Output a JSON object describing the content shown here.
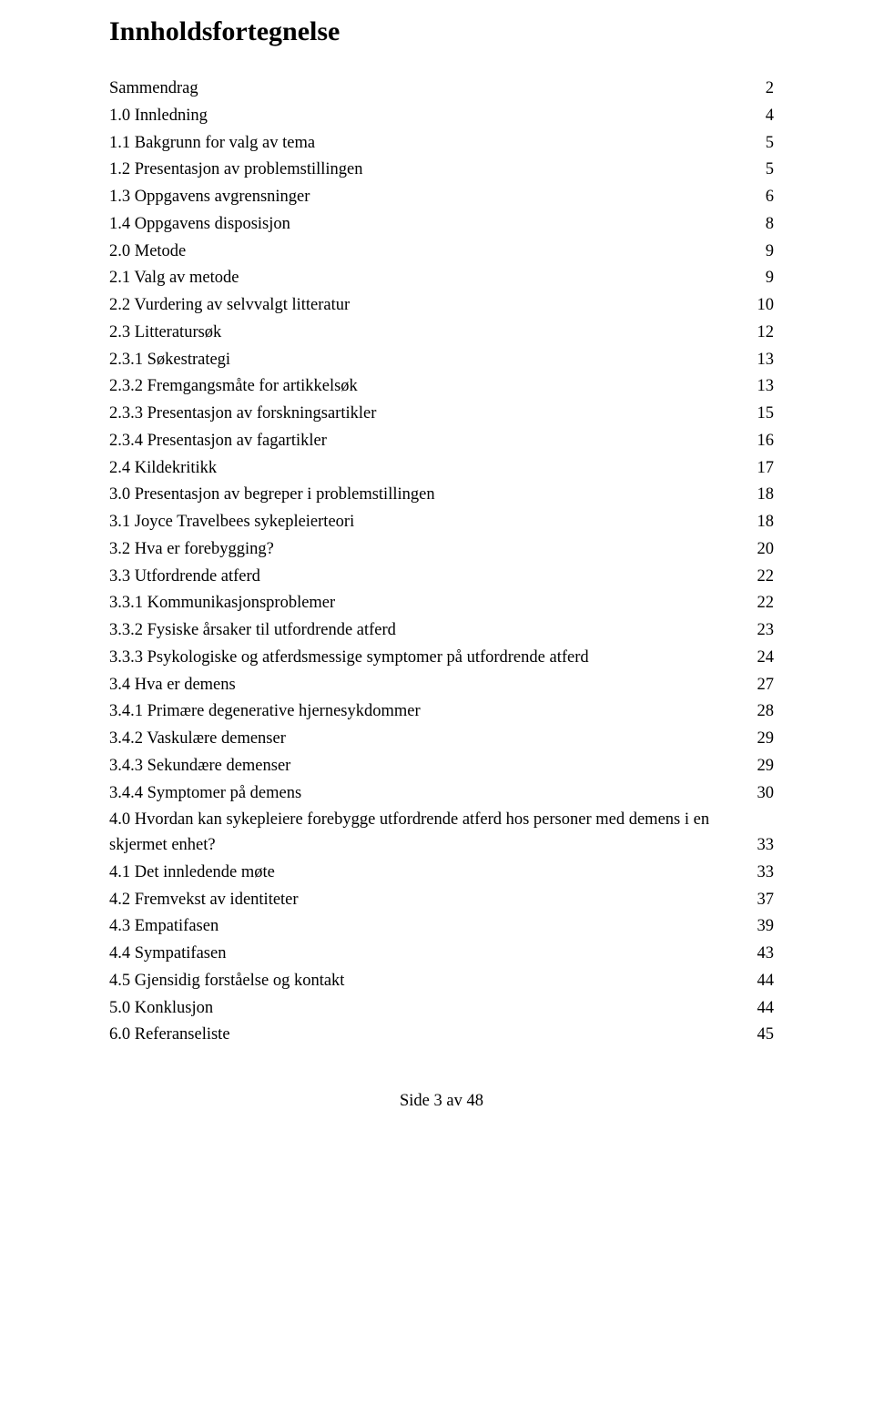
{
  "title": "Innholdsfortegnelse",
  "toc": [
    {
      "label": "Sammendrag",
      "page": "2"
    },
    {
      "label": "1.0 Innledning",
      "page": "4"
    },
    {
      "label": "1.1 Bakgrunn for valg av tema",
      "page": "5"
    },
    {
      "label": "1.2 Presentasjon av problemstillingen",
      "page": "5"
    },
    {
      "label": "1.3 Oppgavens avgrensninger",
      "page": "6"
    },
    {
      "label": "1.4 Oppgavens disposisjon",
      "page": "8"
    },
    {
      "label": "2.0 Metode",
      "page": "9"
    },
    {
      "label": "2.1 Valg av metode",
      "page": "9"
    },
    {
      "label": "2.2 Vurdering av selvvalgt litteratur",
      "page": "10"
    },
    {
      "label": "2.3 Litteratursøk",
      "page": "12"
    },
    {
      "label": "2.3.1 Søkestrategi",
      "page": "13"
    },
    {
      "label": "2.3.2 Fremgangsmåte for artikkelsøk",
      "page": "13"
    },
    {
      "label": "2.3.3 Presentasjon av forskningsartikler",
      "page": "15"
    },
    {
      "label": "2.3.4 Presentasjon av fagartikler",
      "page": "16"
    },
    {
      "label": "2.4 Kildekritikk",
      "page": "17"
    },
    {
      "label": "3.0 Presentasjon av begreper i problemstillingen",
      "page": "18"
    },
    {
      "label": "3.1 Joyce Travelbees sykepleierteori",
      "page": "18"
    },
    {
      "label": "3.2 Hva er forebygging?",
      "page": "20"
    },
    {
      "label": "3.3 Utfordrende atferd",
      "page": "22"
    },
    {
      "label": "3.3.1 Kommunikasjonsproblemer",
      "page": "22"
    },
    {
      "label": "3.3.2 Fysiske årsaker til utfordrende atferd",
      "page": "23"
    },
    {
      "label": "3.3.3 Psykologiske og atferdsmessige symptomer på utfordrende atferd",
      "page": "24"
    },
    {
      "label": "3.4 Hva er demens",
      "page": "27"
    },
    {
      "label": "3.4.1 Primære degenerative hjernesykdommer",
      "page": "28"
    },
    {
      "label": "3.4.2 Vaskulære demenser",
      "page": "29"
    },
    {
      "label": "3.4.3 Sekundære demenser",
      "page": "29"
    },
    {
      "label": "3.4.4 Symptomer på demens",
      "page": "30"
    },
    {
      "label": "4.0 Hvordan kan sykepleiere forebygge utfordrende atferd hos personer med demens i en",
      "label2": "skjermet enhet?",
      "page": "33",
      "multiline": true
    },
    {
      "label": "4.1 Det innledende møte",
      "page": "33"
    },
    {
      "label": "4.2 Fremvekst av identiteter",
      "page": "37"
    },
    {
      "label": "4.3 Empatifasen",
      "page": "39"
    },
    {
      "label": "4.4 Sympatifasen",
      "page": "43"
    },
    {
      "label": "4.5 Gjensidig forståelse og kontakt",
      "page": "44"
    },
    {
      "label": "5.0 Konklusjon",
      "page": "44"
    },
    {
      "label": "6.0 Referanseliste",
      "page": "45"
    }
  ],
  "footer": "Side 3 av 48",
  "colors": {
    "text": "#000000",
    "background": "#ffffff"
  },
  "typography": {
    "title_fontsize": 30,
    "title_fontweight": "bold",
    "body_fontsize": 18.5,
    "font_family": "Times New Roman"
  }
}
